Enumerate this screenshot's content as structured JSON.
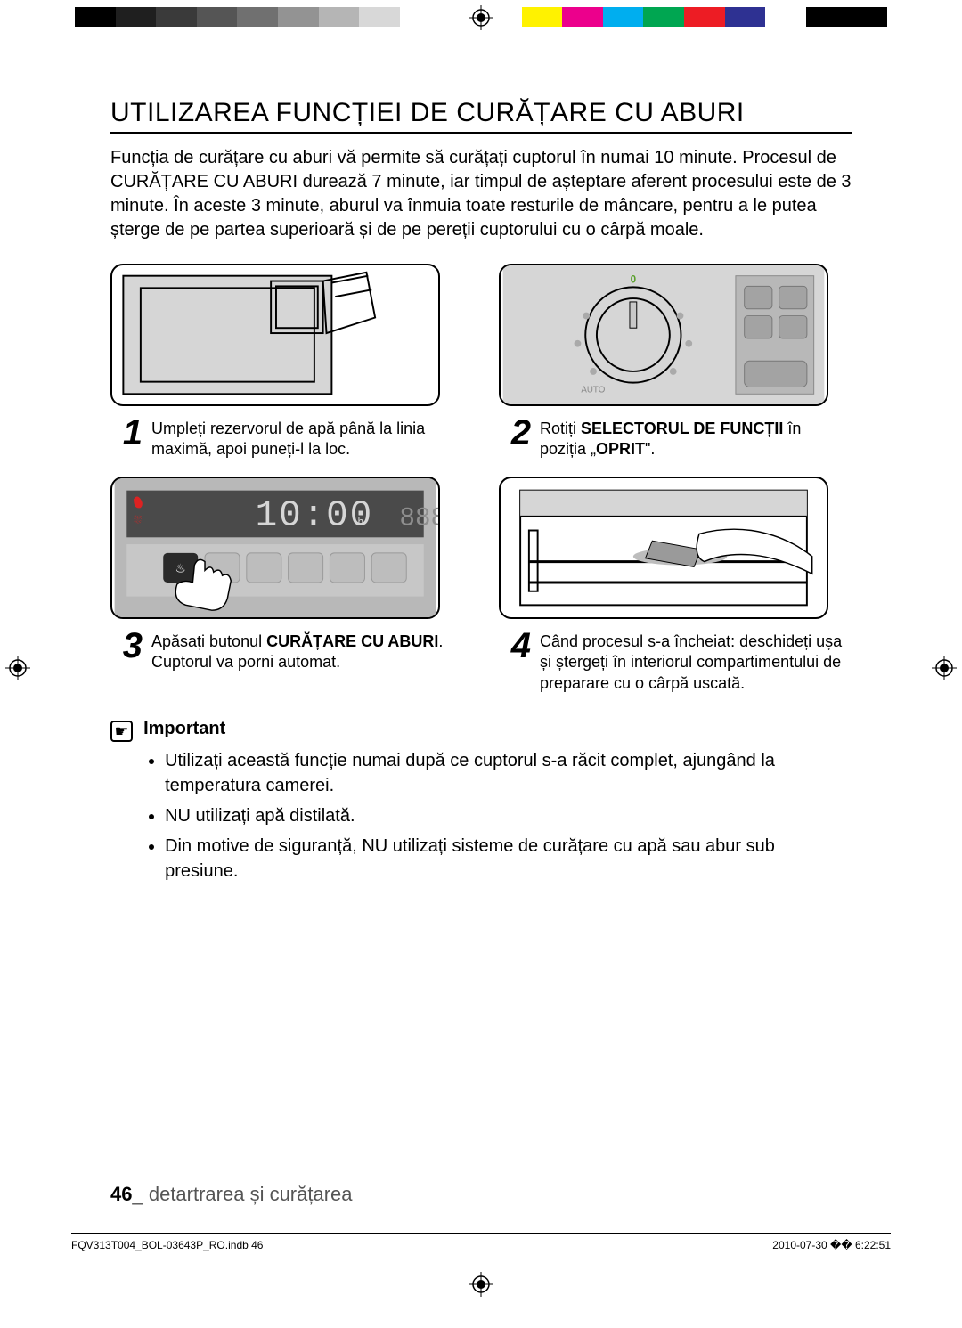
{
  "colorbar": {
    "left_swatches": [
      "#000000",
      "#1f1f1f",
      "#3a3a3a",
      "#555555",
      "#707070",
      "#939393",
      "#b5b5b5",
      "#d8d8d8",
      "#ffffff",
      "#ffffff"
    ],
    "right_swatches": [
      "#ffffff",
      "#fff200",
      "#ec008c",
      "#00aeef",
      "#00a651",
      "#ed1c24",
      "#2e3192",
      "#ffffff",
      "#000000",
      "#000000"
    ]
  },
  "title": "UTILIZAREA FUNCȚIEI DE CURĂȚARE CU ABURI",
  "intro": "Funcția de curățare cu aburi vă permite să curățați cuptorul în numai 10 minute. Procesul de CURĂȚARE CU ABURI durează 7 minute, iar timpul de așteptare aferent procesului este de 3 minute. În aceste 3 minute, aburul va înmuia toate resturile de mâncare, pentru a le putea șterge de pe partea superioară și de pe pereții cuptorului cu o cârpă moale.",
  "steps": {
    "s1": {
      "num": "1",
      "text_pre": "Umpleți rezervorul de apă până la linia maximă, apoi puneți-l la loc."
    },
    "s2": {
      "num": "2",
      "text_pre": "Rotiți ",
      "bold1": "SELECTORUL DE FUNCȚII",
      "text_mid": " în poziția „",
      "bold2": "OPRIT",
      "text_post": "\"."
    },
    "s3": {
      "num": "3",
      "text_pre": "Apăsați butonul ",
      "bold1": "CURĂȚARE CU ABURI",
      "text_post": ". Cuptorul va porni automat."
    },
    "s4": {
      "num": "4",
      "text_pre": "Când procesul s-a încheiat: deschideți ușa și ștergeți în interiorul compartimentului de preparare cu o cârpă uscată."
    }
  },
  "important": {
    "label": "Important",
    "bullets": [
      "Utilizați această funcție numai după ce cuptorul s-a răcit complet, ajungând la temperatura camerei.",
      "NU utilizați apă distilată.",
      "Din motive de siguranță, NU utilizați sisteme de curățare cu apă sau abur sub presiune."
    ]
  },
  "footer": {
    "page_num": "46",
    "sep": "_",
    "section": " detartrarea și curățarea",
    "indb": "FQV313T004_BOL-03643P_RO.indb   46",
    "timestamp": "2010-07-30   �� 6:22:51"
  },
  "display_time": "10:00"
}
